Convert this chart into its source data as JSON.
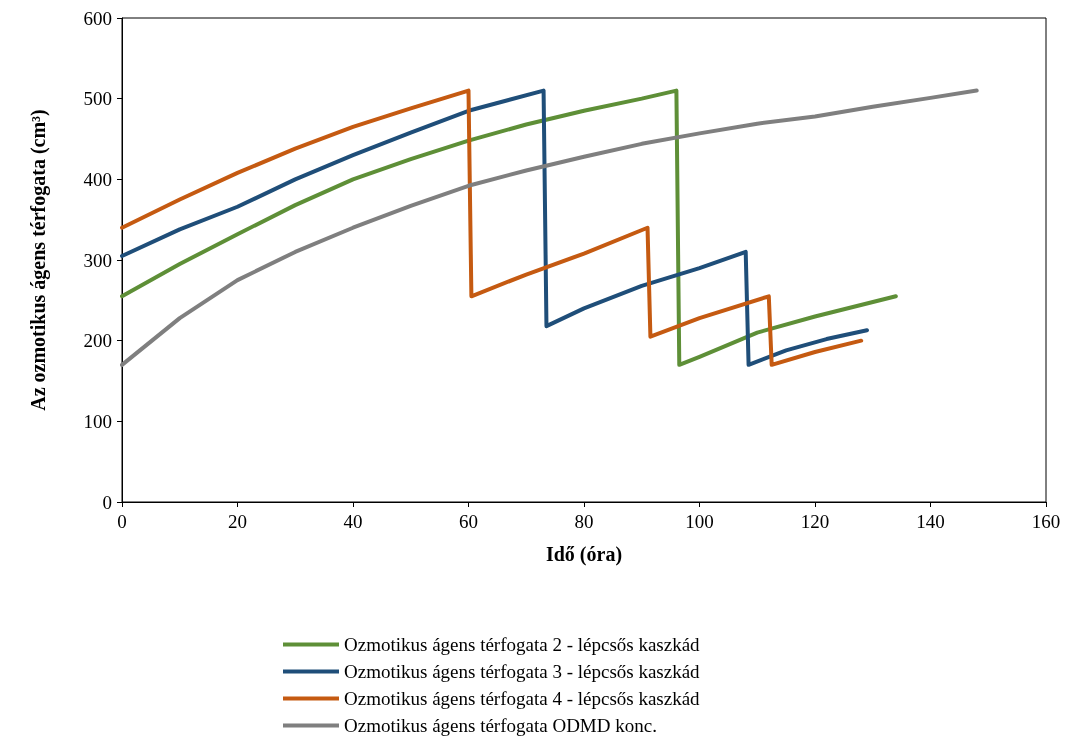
{
  "chart_data": {
    "type": "line",
    "xlabel": "Idő (óra)",
    "ylabel": "Az ozmotikus ágens térfogata (cm³)",
    "xlim": [
      0,
      160
    ],
    "xticks": [
      0,
      20,
      40,
      60,
      80,
      100,
      120,
      140,
      160
    ],
    "ylim": [
      0,
      600
    ],
    "yticks": [
      0,
      100,
      200,
      300,
      400,
      500,
      600
    ],
    "grid": false,
    "legend": "bottom",
    "marker": "none",
    "line_style": "solid",
    "series": [
      {
        "name": "Ozmotikus ágens térfogata 2 - lépcsős kaszkád",
        "color": "#5e8f37",
        "x": [
          0,
          10,
          20,
          30,
          40,
          50,
          60,
          70,
          80,
          90,
          96,
          96.5,
          100,
          110,
          120,
          134
        ],
        "values": [
          255,
          295,
          332,
          368,
          400,
          425,
          448,
          468,
          485,
          500,
          510,
          170,
          180,
          210,
          230,
          255
        ]
      },
      {
        "name": "Ozmotikus ágens térfogata 3 - lépcsős kaszkád",
        "color": "#1f4e79",
        "x": [
          0,
          10,
          20,
          30,
          40,
          50,
          60,
          73,
          73.5,
          80,
          90,
          100,
          108,
          108.5,
          115,
          122,
          129
        ],
        "values": [
          305,
          338,
          366,
          400,
          430,
          458,
          485,
          510,
          218,
          240,
          268,
          290,
          310,
          170,
          188,
          202,
          213
        ]
      },
      {
        "name": "Ozmotikus ágens térfogata 4 - lépcsős kaszkád",
        "color": "#c55a11",
        "x": [
          0,
          10,
          20,
          30,
          40,
          50,
          60,
          60.5,
          70,
          80,
          91,
          91.5,
          100,
          112,
          112.5,
          120,
          128
        ],
        "values": [
          340,
          375,
          408,
          438,
          465,
          488,
          510,
          255,
          282,
          308,
          340,
          205,
          228,
          255,
          170,
          186,
          200
        ]
      },
      {
        "name": "Ozmotikus ágens térfogata ODMD konc.",
        "color": "#7f7f7f",
        "x": [
          0,
          10,
          20,
          30,
          40,
          50,
          60,
          70,
          80,
          90,
          100,
          110,
          120,
          130,
          140,
          148
        ],
        "values": [
          170,
          228,
          275,
          310,
          340,
          367,
          392,
          411,
          428,
          444,
          457,
          469,
          478,
          490,
          501,
          510
        ]
      }
    ]
  }
}
